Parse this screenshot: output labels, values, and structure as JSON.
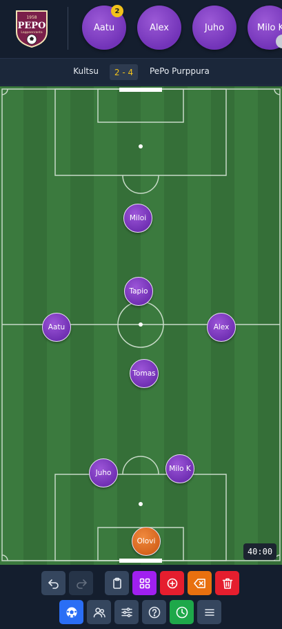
{
  "logo": {
    "text": "PEPO",
    "subtitle": "Lappeenranta",
    "year": "1958"
  },
  "bench": [
    {
      "name": "Aatu",
      "badge": "2"
    },
    {
      "name": "Alex"
    },
    {
      "name": "Juho"
    },
    {
      "name": "Milo K"
    }
  ],
  "score": {
    "home_team": "Kultsu",
    "score": "2 - 4",
    "away_team": "PePo Purppura"
  },
  "players": [
    {
      "name": "Miloi"
    },
    {
      "name": "Tapio"
    },
    {
      "name": "Aatu"
    },
    {
      "name": "Alex"
    },
    {
      "name": "Tomas"
    },
    {
      "name": "Juho"
    },
    {
      "name": "Milo K"
    },
    {
      "name": "Olovi",
      "role": "goalkeeper"
    }
  ],
  "timer": "40:00",
  "colors": {
    "player": "#7b3fc4",
    "goalkeeper": "#e06f24",
    "badge": "#f2c21b",
    "score_text": "#f2c21b",
    "pitch": "#3b7a3e"
  },
  "toolbar": {
    "row1": [
      "undo-icon",
      "redo-icon",
      "clipboard-icon",
      "grid-icon",
      "add-circle-icon",
      "backspace-icon",
      "trash-icon"
    ],
    "row2": [
      "ball-icon",
      "users-icon",
      "sliders-icon",
      "help-icon",
      "clock-icon",
      "menu-icon"
    ]
  }
}
